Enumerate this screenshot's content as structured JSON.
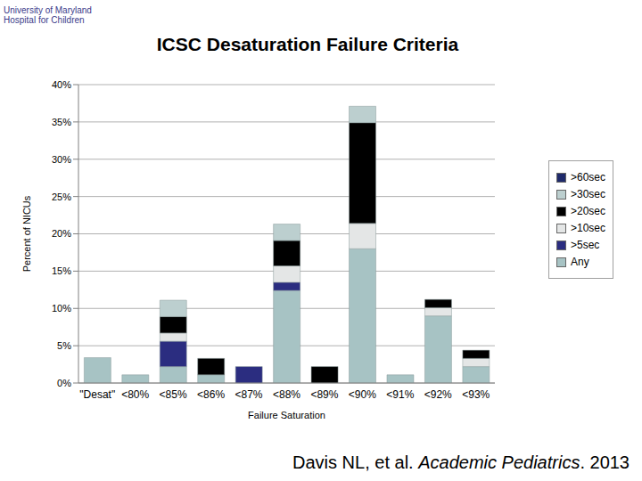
{
  "chart_data": {
    "type": "bar",
    "title": "ICSC Desaturation Failure Criteria",
    "logo": "University of Maryland Hospital for Children",
    "x_label": "Failure Saturation",
    "y_label": "Percent of NICUs",
    "citation_parts": [
      "Davis NL, et al. ",
      "Academic Pediatrics",
      ". 2013"
    ],
    "stacked": true,
    "grid": true,
    "legend": "right",
    "categories": [
      "\"Desat\"",
      "<80%",
      "<85%",
      "<86%",
      "<87%",
      "<88%",
      "<89%",
      "<90%",
      "<91%",
      "<92%",
      "<93%"
    ],
    "series": [
      {
        "name": "Any",
        "color": "#a7c3c4",
        "values": [
          3.4,
          1.1,
          2.2,
          1.1,
          0,
          12.4,
          0,
          18.0,
          1.1,
          9.0,
          2.2
        ]
      },
      {
        "name": ">5sec",
        "color": "#2b2d80",
        "values": [
          0,
          0,
          3.4,
          0,
          2.2,
          1.1,
          0,
          0,
          0,
          0,
          0
        ]
      },
      {
        "name": ">10sec",
        "color": "#e4e6e6",
        "values": [
          0,
          0,
          1.1,
          0,
          0,
          2.2,
          0,
          3.4,
          0,
          1.1,
          1.1
        ]
      },
      {
        "name": ">20sec",
        "color": "#000000",
        "values": [
          0,
          0,
          2.2,
          2.2,
          0,
          3.4,
          2.2,
          13.5,
          0,
          1.1,
          1.1
        ]
      },
      {
        "name": ">30sec",
        "color": "#bccfcf",
        "values": [
          0,
          0,
          2.2,
          0,
          0,
          2.2,
          0,
          2.2,
          0,
          0,
          0
        ]
      },
      {
        "name": ">60sec",
        "color": "#1f2a6b",
        "values": [
          0,
          0,
          0,
          0,
          0,
          0,
          0,
          0,
          0,
          0,
          0
        ]
      }
    ],
    "ylim": [
      0,
      40
    ],
    "yticks": [
      {
        "value": 0,
        "label": "0%"
      },
      {
        "value": 5,
        "label": "5%"
      },
      {
        "value": 10,
        "label": "10%"
      },
      {
        "value": 15,
        "label": "15%"
      },
      {
        "value": 20,
        "label": "20%"
      },
      {
        "value": 25,
        "label": "25%"
      },
      {
        "value": 30,
        "label": "30%"
      },
      {
        "value": 35,
        "label": "35%"
      },
      {
        "value": 40,
        "label": "40%"
      }
    ]
  }
}
